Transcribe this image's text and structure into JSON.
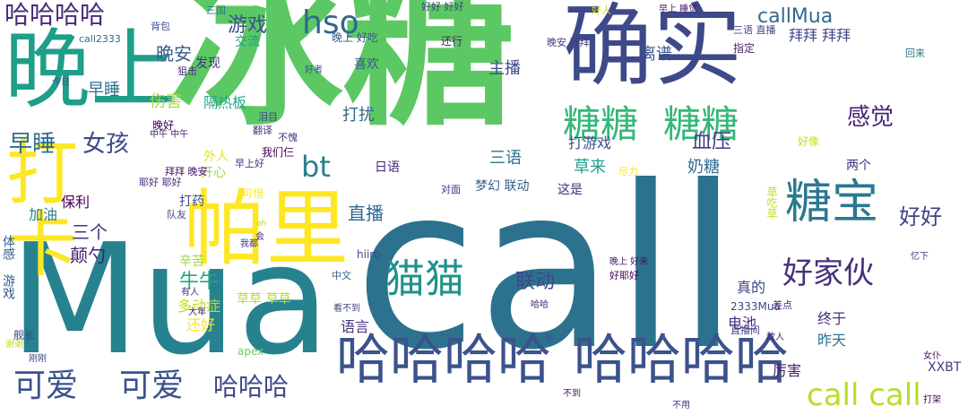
{
  "words": [
    {
      "t": "冰糖",
      "c": "#5cc863"
    },
    {
      "t": "call",
      "c": "#2c728e"
    },
    {
      "t": "Mua",
      "c": "#26828e"
    },
    {
      "t": "晚上",
      "c": "#1f9e89"
    },
    {
      "t": "确实",
      "c": "#3e4989"
    },
    {
      "t": "打卡",
      "c": "#fde725"
    },
    {
      "t": "帕里",
      "c": "#fde725"
    },
    {
      "t": "哈哈哈哈",
      "c": "#472c7a"
    },
    {
      "t": "哈哈哈哈",
      "c": "#3b528b"
    },
    {
      "t": "哈哈哈哈",
      "c": "#443a83"
    },
    {
      "t": "糖糖",
      "c": "#35b779"
    },
    {
      "t": "糖糖",
      "c": "#35b779"
    },
    {
      "t": "可爱",
      "c": "#3b528b"
    },
    {
      "t": "可爱",
      "c": "#3b528b"
    },
    {
      "t": "哈哈哈",
      "c": "#3e4989"
    },
    {
      "t": "call call",
      "c": "#b5de2b"
    },
    {
      "t": "糖宝",
      "c": "#2a788e"
    },
    {
      "t": "猫猫",
      "c": "#21918c"
    },
    {
      "t": "好家伙",
      "c": "#46307e"
    },
    {
      "t": "hso",
      "c": "#31688e"
    },
    {
      "t": "bt",
      "c": "#287d8e"
    },
    {
      "t": "早睡",
      "c": "#2e6e8e"
    },
    {
      "t": "女孩",
      "c": "#3e4a89"
    },
    {
      "t": "感觉",
      "c": "#482576"
    },
    {
      "t": "callMua",
      "c": "#31688e"
    },
    {
      "t": "游戏",
      "c": "#3b528b"
    },
    {
      "t": "晚安",
      "c": "#365c8d"
    },
    {
      "t": "早睡",
      "c": "#2d708e"
    },
    {
      "t": "伤害",
      "c": "#9fda3a"
    },
    {
      "t": "隔热板",
      "c": "#22a884"
    },
    {
      "t": "打扰",
      "c": "#31688e"
    },
    {
      "t": "血压",
      "c": "#433e85"
    },
    {
      "t": "奶糖",
      "c": "#2f6c8e"
    },
    {
      "t": "直播",
      "c": "#31688e"
    },
    {
      "t": "三语",
      "c": "#2e6f8e"
    },
    {
      "t": "草来",
      "c": "#1f9e89"
    },
    {
      "t": "打游戏",
      "c": "#3b528b"
    },
    {
      "t": "好好",
      "c": "#414487"
    },
    {
      "t": "主播",
      "c": "#3e4989"
    },
    {
      "t": "喜欢",
      "c": "#38588c"
    },
    {
      "t": "离谱",
      "c": "#3b528b"
    },
    {
      "t": "拜拜 拜拜",
      "c": "#414487"
    },
    {
      "t": "联动",
      "c": "#3e4989"
    },
    {
      "t": "三个",
      "c": "#46327e"
    },
    {
      "t": "颠勺",
      "c": "#481f70"
    },
    {
      "t": "加油",
      "c": "#27808e"
    },
    {
      "t": "保利",
      "c": "#440154"
    },
    {
      "t": "开心",
      "c": "#9fda3a"
    },
    {
      "t": "牛牛",
      "c": "#22a884"
    },
    {
      "t": "多动症",
      "c": "#c0df25"
    },
    {
      "t": "还好",
      "c": "#fde725"
    },
    {
      "t": "语言",
      "c": "#46337f"
    },
    {
      "t": "电池",
      "c": "#472d7b"
    },
    {
      "t": "昨天",
      "c": "#2c728e"
    },
    {
      "t": "终于",
      "c": "#46337f"
    },
    {
      "t": "真的",
      "c": "#3e4a89"
    },
    {
      "t": "厉害",
      "c": "#482173"
    },
    {
      "t": "XXBT",
      "c": "#453882"
    },
    {
      "t": "草草 草草",
      "c": "#b5de2b"
    },
    {
      "t": "辛苦",
      "c": "#9fda3a"
    },
    {
      "t": "日语",
      "c": "#482475"
    },
    {
      "t": "梦幻 联动",
      "c": "#355f8d"
    },
    {
      "t": "这是",
      "c": "#472e7c"
    },
    {
      "t": "两个",
      "c": "#46317e"
    },
    {
      "t": "好像",
      "c": "#c8e020"
    },
    {
      "t": "发现",
      "c": "#46327e"
    },
    {
      "t": "交流",
      "c": "#1fa188"
    },
    {
      "t": "还行",
      "c": "#481b6d"
    },
    {
      "t": "晚上 好吃",
      "c": "#38598c"
    },
    {
      "t": "打药",
      "c": "#3e4989"
    },
    {
      "t": "晚好",
      "c": "#440154"
    },
    {
      "t": "可惜",
      "c": "#fde725"
    },
    {
      "t": "apex",
      "c": "#6ece58"
    },
    {
      "t": "2333Mua",
      "c": "#3e4989"
    },
    {
      "t": "hiiro",
      "c": "#3e4a89"
    },
    {
      "t": "GIF",
      "c": "#440154"
    },
    {
      "t": "中文",
      "c": "#365c8d"
    },
    {
      "t": "对面",
      "c": "#472f7d"
    },
    {
      "t": "指定",
      "c": "#481c6e"
    },
    {
      "t": "差点",
      "c": "#482878"
    },
    {
      "t": "直播间",
      "c": "#3e4989"
    },
    {
      "t": "好耶好",
      "c": "#440154"
    },
    {
      "t": "晚上 好来",
      "c": "#481769"
    },
    {
      "t": "我们仨",
      "c": "#440154"
    },
    {
      "t": "不愧",
      "c": "#46327e"
    },
    {
      "t": "耶好 耶好",
      "c": "#482878"
    },
    {
      "t": "拜拜 晚安",
      "c": "#481668"
    },
    {
      "t": "外人",
      "c": "#e5e419"
    },
    {
      "t": "早上好",
      "c": "#443983"
    },
    {
      "t": "翻译",
      "c": "#46327e"
    },
    {
      "t": "回来",
      "c": "#2a788e"
    },
    {
      "t": "好好 好好",
      "c": "#433e85"
    },
    {
      "t": "call2333",
      "c": "#2f6c8e"
    },
    {
      "t": "三国",
      "c": "#2a788e"
    },
    {
      "t": "泪目",
      "c": "#3e4989"
    },
    {
      "t": "狙击",
      "c": "#482878"
    },
    {
      "t": "背包",
      "c": "#3b528b"
    },
    {
      "t": "好人",
      "c": "#cae11f"
    },
    {
      "t": "三语 直播",
      "c": "#414487"
    },
    {
      "t": "晚安 拜拜",
      "c": "#433e85"
    },
    {
      "t": "早上 睡觉",
      "c": "#481668"
    },
    {
      "t": "看不到",
      "c": "#414487"
    },
    {
      "t": "不到",
      "c": "#471365"
    },
    {
      "t": "不用",
      "c": "#46327e"
    },
    {
      "t": "女仆",
      "c": "#471063"
    },
    {
      "t": "打架",
      "c": "#46085c"
    },
    {
      "t": "队友",
      "c": "#3e4a89"
    },
    {
      "t": "体感 游戏",
      "c": "#365c8d"
    },
    {
      "t": "舰长",
      "c": "#3e4989"
    },
    {
      "t": "谢谢",
      "c": "#bddf26"
    },
    {
      "t": "刚刚",
      "c": "#414487"
    },
    {
      "t": "一拳",
      "c": "#3b528b"
    },
    {
      "t": "哈哈",
      "c": "#481f70"
    },
    {
      "t": "大年",
      "c": "#472a7a"
    },
    {
      "t": "有人",
      "c": "#46327e"
    },
    {
      "t": "尽力",
      "c": "#fde725"
    },
    {
      "t": "草吃草",
      "c": "#bddf26"
    },
    {
      "t": "敌人",
      "c": "#482878"
    },
    {
      "t": "好者",
      "c": "#3b528b"
    },
    {
      "t": "忆下",
      "c": "#433e85"
    },
    {
      "t": "我都",
      "c": "#46327e"
    },
    {
      "t": "会",
      "c": "#472f7d"
    },
    {
      "t": "oh",
      "c": "#b2dd2d"
    },
    {
      "t": "中午 中午",
      "c": "#481f70"
    },
    {
      "t": "今日",
      "c": "#38598c"
    }
  ]
}
